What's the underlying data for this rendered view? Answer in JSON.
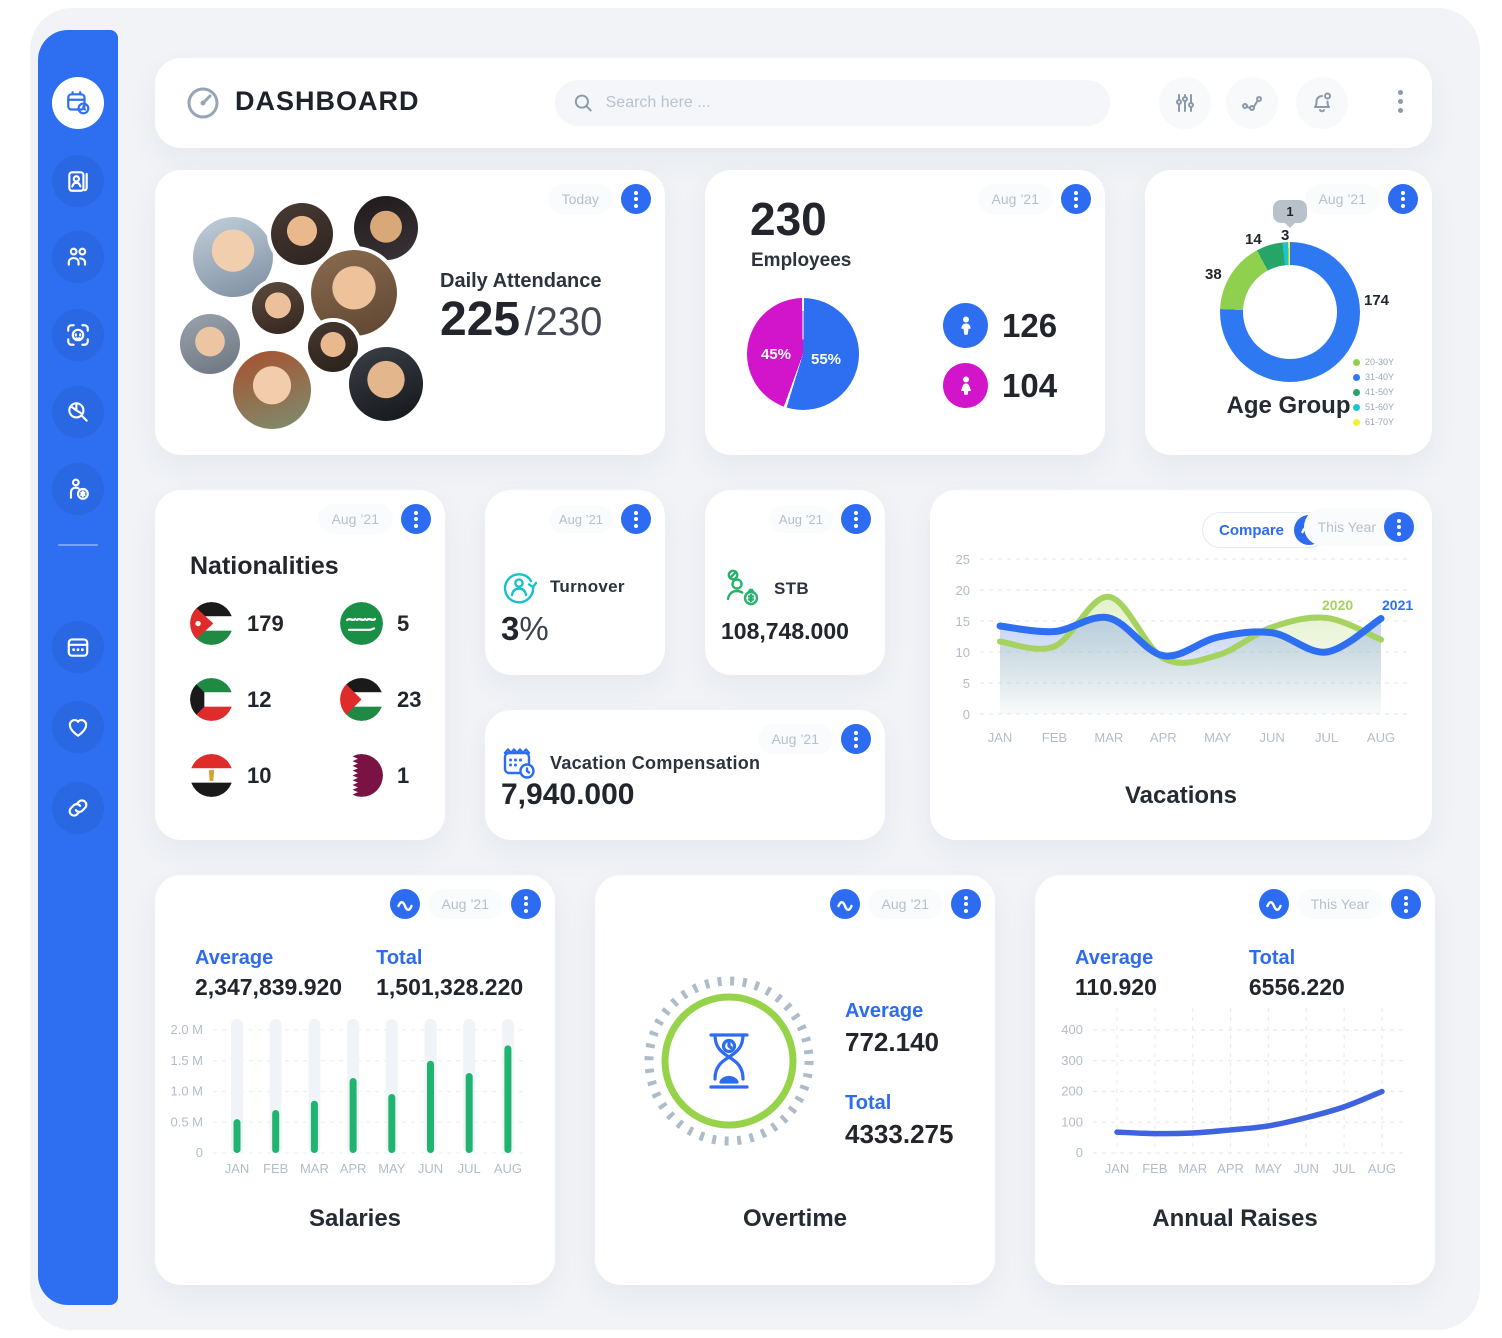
{
  "header": {
    "title": "DASHBOARD",
    "search": {
      "placeholder": "Search here ...",
      "icon": "magnifier-icon"
    },
    "action_icons": [
      "filter-sliders-icon",
      "share-nodes-icon",
      "notifications-bell-icon",
      "more-kebab-icon"
    ],
    "logo_icon": "gauge-icon"
  },
  "sidebar": {
    "active": "dashboard",
    "items": [
      "dashboard",
      "employee-cards",
      "team",
      "face-id",
      "insights",
      "payroll"
    ],
    "items_secondary": [
      "schedule",
      "wellness",
      "links"
    ]
  },
  "cards": {
    "attendance": {
      "period": "Today",
      "title": "Daily Attendance",
      "value": "225",
      "total": "/230"
    },
    "employees": {
      "period": "Aug ’21",
      "count": "230",
      "label": "Employees",
      "male": {
        "value": "126",
        "pct": "55%",
        "color": "#2e6ff2"
      },
      "female": {
        "value": "104",
        "pct": "45%",
        "color": "#d214cb"
      },
      "chart_data": {
        "type": "pie",
        "slices": [
          {
            "label": "Male",
            "value": 126,
            "pct": 55,
            "color": "#2e6ff2"
          },
          {
            "label": "Female",
            "value": 104,
            "pct": 45,
            "color": "#d214cb"
          }
        ]
      }
    },
    "age_group": {
      "period": "Aug ’21",
      "title": "Age Group",
      "tooltip_value": "1",
      "chart_data": {
        "type": "donut",
        "segments": [
          {
            "label": "31-40Y",
            "value": 174,
            "color": "#2e79f2"
          },
          {
            "label": "20-30Y",
            "value": 38,
            "color": "#8fd14f"
          },
          {
            "label": "41-50Y",
            "value": 14,
            "color": "#27a468"
          },
          {
            "label": "51-60Y",
            "value": 3,
            "color": "#1fc3d2"
          },
          {
            "label": "61-70Y",
            "value": 1,
            "color": "#f3ef3d"
          }
        ],
        "legend": [
          {
            "label": "20-30Y",
            "color": "#8fd14f"
          },
          {
            "label": "31-40Y",
            "color": "#2e79f2"
          },
          {
            "label": "41-50Y",
            "color": "#27a468"
          },
          {
            "label": "51-60Y",
            "color": "#1fc3d2"
          },
          {
            "label": "61-70Y",
            "color": "#f3ef3d"
          }
        ]
      }
    },
    "nationalities": {
      "period": "Aug ’21",
      "title": "Nationalities",
      "items": [
        {
          "country": "Jordan",
          "value": "179"
        },
        {
          "country": "Saudi Arabia",
          "value": "5"
        },
        {
          "country": "Kuwait",
          "value": "12"
        },
        {
          "country": "Palestine",
          "value": "23"
        },
        {
          "country": "Egypt",
          "value": "10"
        },
        {
          "country": "Qatar",
          "value": "1"
        }
      ]
    },
    "turnover": {
      "period": "Aug ’21",
      "label": "Turnover",
      "value": "3",
      "suffix": "%"
    },
    "stb": {
      "period": "Aug ’21",
      "label": "STB",
      "value": "108,748.000"
    },
    "vacation_compensation": {
      "period": "Aug ’21",
      "label": "Vacation Compensation",
      "value": "7,940.000"
    },
    "vacations": {
      "compare_label": "Compare",
      "period": "This Year",
      "title": "Vacations",
      "chart_data": {
        "type": "line",
        "x": [
          "JAN",
          "FEB",
          "MAR",
          "APR",
          "MAY",
          "JUN",
          "JUL",
          "AUG"
        ],
        "yticks": [
          0,
          5,
          10,
          15,
          20,
          25
        ],
        "ymax": 25,
        "grid": "dashed-horizontal",
        "legend_position": "inline-right",
        "series": [
          {
            "name": "2020",
            "color": "#a6d35f",
            "values": [
              11.7,
              10.9,
              18.9,
              9.0,
              9.5,
              14.0,
              15.5,
              12.0
            ]
          },
          {
            "name": "2021",
            "color": "#2e6ff2",
            "values": [
              14.2,
              13.3,
              15.5,
              9.4,
              12.4,
              13.1,
              10.0,
              15.4
            ]
          }
        ]
      }
    },
    "salaries": {
      "period": "Aug ’21",
      "avg_label": "Average",
      "avg_value": "2,347,839.920",
      "total_label": "Total",
      "total_value": "1,501,328.220",
      "title": "Salaries",
      "chart_data": {
        "type": "bar",
        "categories": [
          "JAN",
          "FEB",
          "MAR",
          "APR",
          "MAY",
          "JUN",
          "JUL",
          "AUG"
        ],
        "values": [
          0.55,
          0.7,
          0.85,
          1.22,
          0.96,
          1.5,
          1.3,
          1.75
        ],
        "yticks": [
          "0",
          "0.5 M",
          "1.0 M",
          "1.5 M",
          "2.0 M"
        ],
        "ytick_values": [
          0,
          0.5,
          1.0,
          1.5,
          2.0
        ],
        "ylim": [
          0,
          2.1
        ],
        "color": "#1fb571",
        "track_color": "#f0f3f7",
        "unit": "M"
      }
    },
    "overtime": {
      "period": "Aug ’21",
      "avg_label": "Average",
      "avg_value": "772.140",
      "total_label": "Total",
      "total_value": "4333.275",
      "title": "Overtime",
      "icon": "hourglass-icon",
      "ring_color": "#97d24b"
    },
    "annual_raises": {
      "period": "This Year",
      "avg_label": "Average",
      "avg_value": "110.920",
      "total_label": "Total",
      "total_value": "6556.220",
      "title": "Annual Raises",
      "chart_data": {
        "type": "line",
        "x": [
          "JAN",
          "FEB",
          "MAR",
          "APR",
          "MAY",
          "JUN",
          "JUL",
          "AUG"
        ],
        "values": [
          68,
          63,
          65,
          75,
          88,
          115,
          150,
          200
        ],
        "yticks": [
          0,
          100,
          200,
          300,
          400
        ],
        "ylim": [
          0,
          430
        ],
        "grid": "dashed-both",
        "color": "#3d63e0"
      }
    }
  }
}
